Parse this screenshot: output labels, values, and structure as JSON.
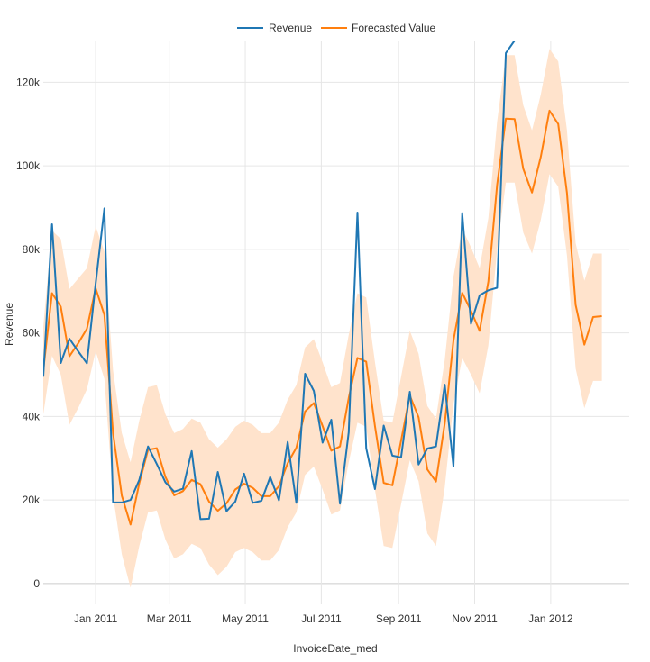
{
  "chart_data": {
    "type": "line",
    "xlabel": "InvoiceDate_med",
    "ylabel": "Revenue",
    "ylim": [
      -5000,
      130000
    ],
    "xlim": [
      "2010-11-20",
      "2012-03-04"
    ],
    "y_ticks": [
      {
        "value": 0,
        "label": "0"
      },
      {
        "value": 20000,
        "label": "20k"
      },
      {
        "value": 40000,
        "label": "40k"
      },
      {
        "value": 60000,
        "label": "60k"
      },
      {
        "value": 80000,
        "label": "80k"
      },
      {
        "value": 100000,
        "label": "100k"
      },
      {
        "value": 120000,
        "label": "120k"
      }
    ],
    "x_ticks": [
      {
        "value": "2011-01-01",
        "label": "Jan 2011"
      },
      {
        "value": "2011-03-01",
        "label": "Mar 2011"
      },
      {
        "value": "2011-05-01",
        "label": "May 2011"
      },
      {
        "value": "2011-07-01",
        "label": "Jul 2011"
      },
      {
        "value": "2011-09-01",
        "label": "Sep 2011"
      },
      {
        "value": "2011-11-01",
        "label": "Nov 2011"
      },
      {
        "value": "2012-01-01",
        "label": "Jan 2012"
      }
    ],
    "grid": true,
    "legend_position": "top-center",
    "colors": {
      "revenue": "#1f77b4",
      "forecast": "#ff7f0e",
      "band": "#ffe3cc"
    },
    "series": [
      {
        "name": "Revenue",
        "x": [
          "2010-11-20",
          "2010-11-27",
          "2010-12-04",
          "2010-12-11",
          "2010-12-18",
          "2010-12-25",
          "2011-01-01",
          "2011-01-08",
          "2011-01-15",
          "2011-01-22",
          "2011-01-29",
          "2011-02-05",
          "2011-02-12",
          "2011-02-19",
          "2011-02-26",
          "2011-03-05",
          "2011-03-12",
          "2011-03-19",
          "2011-03-26",
          "2011-04-02",
          "2011-04-09",
          "2011-04-16",
          "2011-04-23",
          "2011-04-30",
          "2011-05-07",
          "2011-05-14",
          "2011-05-21",
          "2011-05-28",
          "2011-06-04",
          "2011-06-11",
          "2011-06-18",
          "2011-06-25",
          "2011-07-02",
          "2011-07-09",
          "2011-07-16",
          "2011-07-23",
          "2011-07-30",
          "2011-08-06",
          "2011-08-13",
          "2011-08-20",
          "2011-08-27",
          "2011-09-03",
          "2011-09-10",
          "2011-09-17",
          "2011-09-24",
          "2011-10-01",
          "2011-10-08",
          "2011-10-15",
          "2011-10-22",
          "2011-10-29",
          "2011-11-05",
          "2011-11-12",
          "2011-11-19",
          "2011-11-26",
          "2011-12-03"
        ],
        "values": [
          49500,
          86000,
          52800,
          58600,
          55600,
          52700,
          71800,
          89800,
          19400,
          19400,
          20000,
          24800,
          32800,
          28600,
          24200,
          22000,
          22700,
          31700,
          15400,
          15500,
          26700,
          17300,
          19600,
          26300,
          19300,
          19800,
          25500,
          19900,
          33900,
          19300,
          50200,
          46100,
          33700,
          39200,
          19100,
          36200,
          88800,
          32400,
          22600,
          37800,
          30600,
          30200,
          45900,
          28500,
          32300,
          32800,
          47600,
          28000,
          88700,
          62200,
          69000,
          70200,
          70800,
          127000,
          130000
        ]
      },
      {
        "name": "Forecasted Value",
        "x": [
          "2010-11-20",
          "2010-11-27",
          "2010-12-04",
          "2010-12-11",
          "2010-12-18",
          "2010-12-25",
          "2011-01-01",
          "2011-01-08",
          "2011-01-15",
          "2011-01-22",
          "2011-01-29",
          "2011-02-05",
          "2011-02-12",
          "2011-02-19",
          "2011-02-26",
          "2011-03-05",
          "2011-03-12",
          "2011-03-19",
          "2011-03-26",
          "2011-04-02",
          "2011-04-09",
          "2011-04-16",
          "2011-04-23",
          "2011-04-30",
          "2011-05-07",
          "2011-05-14",
          "2011-05-21",
          "2011-05-28",
          "2011-06-04",
          "2011-06-11",
          "2011-06-18",
          "2011-06-25",
          "2011-07-02",
          "2011-07-09",
          "2011-07-16",
          "2011-07-23",
          "2011-07-30",
          "2011-08-06",
          "2011-08-13",
          "2011-08-20",
          "2011-08-27",
          "2011-09-03",
          "2011-09-10",
          "2011-09-17",
          "2011-09-24",
          "2011-10-01",
          "2011-10-08",
          "2011-10-15",
          "2011-10-22",
          "2011-10-29",
          "2011-11-05",
          "2011-11-12",
          "2011-11-19",
          "2011-11-26",
          "2011-12-03",
          "2011-12-10",
          "2011-12-17",
          "2011-12-24",
          "2011-12-31",
          "2012-01-07",
          "2012-01-14",
          "2012-01-21",
          "2012-01-28",
          "2012-02-04",
          "2012-02-11"
        ],
        "values": [
          51000,
          69500,
          66300,
          54400,
          57500,
          61000,
          70700,
          64300,
          36000,
          21000,
          14100,
          24000,
          32000,
          32400,
          25500,
          21100,
          22100,
          24800,
          23800,
          19600,
          17400,
          19200,
          22500,
          23900,
          22900,
          20900,
          20900,
          23300,
          28800,
          32500,
          41200,
          43200,
          37700,
          31800,
          32800,
          44400,
          54000,
          53100,
          37700,
          24100,
          23500,
          34200,
          45000,
          39800,
          27300,
          24400,
          38300,
          58200,
          69600,
          65300,
          60500,
          72300,
          95400,
          111300,
          111200,
          99300,
          93600,
          102100,
          113200,
          110000,
          93500,
          66700,
          57200,
          63800,
          64000
        ],
        "lower": [
          40500,
          54500,
          50000,
          38000,
          42000,
          46500,
          55600,
          49000,
          21000,
          7000,
          -1000,
          9000,
          17000,
          17500,
          10500,
          6000,
          7000,
          9500,
          8500,
          4500,
          2000,
          4000,
          7500,
          8500,
          7500,
          5500,
          5500,
          8000,
          13500,
          17000,
          26000,
          28000,
          22500,
          16500,
          17500,
          29000,
          38500,
          37500,
          22500,
          9000,
          8500,
          19000,
          29500,
          24500,
          12000,
          9000,
          23000,
          43000,
          54000,
          50000,
          45500,
          57000,
          80000,
          96000,
          96000,
          84000,
          79000,
          87000,
          98000,
          95000,
          78500,
          51500,
          42000,
          48500,
          48500
        ],
        "upper": [
          61500,
          84500,
          82500,
          70500,
          73000,
          75500,
          85500,
          79500,
          51000,
          36000,
          29000,
          39000,
          47000,
          47500,
          40500,
          36000,
          37000,
          39500,
          38500,
          34500,
          32500,
          34500,
          37500,
          39000,
          38000,
          36000,
          36000,
          38500,
          44000,
          47500,
          56500,
          58500,
          53000,
          47000,
          48000,
          59500,
          69500,
          68500,
          53000,
          39000,
          38500,
          49500,
          60500,
          55000,
          42500,
          39500,
          53500,
          73500,
          85000,
          80500,
          75500,
          87500,
          110500,
          126500,
          126500,
          114500,
          108500,
          117000,
          128000,
          125000,
          108500,
          81500,
          72500,
          79000,
          79000
        ]
      }
    ]
  }
}
